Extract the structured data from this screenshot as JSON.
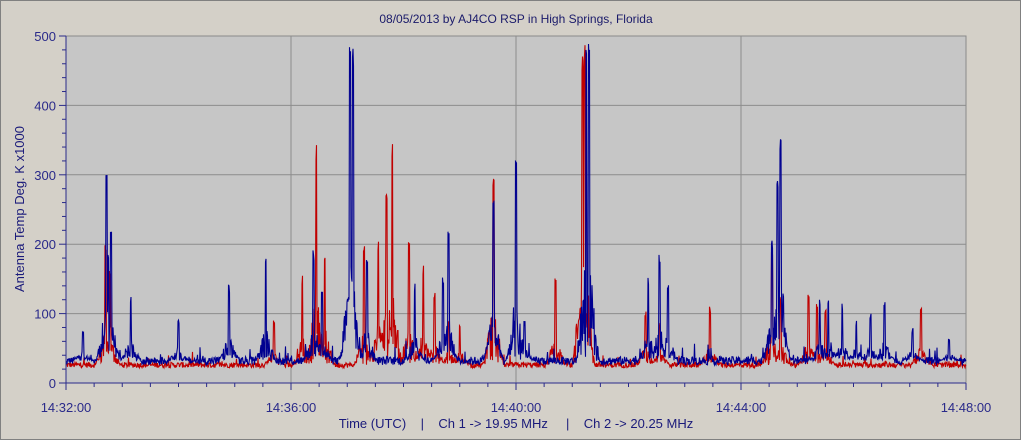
{
  "chart_data": {
    "type": "line",
    "title": "08/05/2013  by  AJ4CO RSP  in  High Springs, Florida",
    "xlabel": "Time (UTC)    |    Ch 1 -> 19.95 MHz     |    Ch 2 -> 20.25 MHz",
    "ylabel": "Antenna Temp Deg. K x1000",
    "ylim": [
      0,
      500
    ],
    "xlim": [
      "14:32:00",
      "14:48:00"
    ],
    "y_ticks": [
      "0",
      "100",
      "200",
      "300",
      "400",
      "500"
    ],
    "x_ticks": [
      "14:32:00",
      "14:36:00",
      "14:40:00",
      "14:44:00",
      "14:48:00"
    ],
    "grid": true,
    "series": [
      {
        "name": "Ch 1 -> 19.95 MHz",
        "color": "#000090",
        "baseline": 32,
        "noise": 6,
        "spikes": [
          {
            "t": 0.3,
            "v": 75
          },
          {
            "t": 0.7,
            "v": 85
          },
          {
            "t": 0.72,
            "v": 318
          },
          {
            "t": 0.75,
            "v": 190
          },
          {
            "t": 0.8,
            "v": 225
          },
          {
            "t": 1.15,
            "v": 125
          },
          {
            "t": 2.0,
            "v": 95
          },
          {
            "t": 2.9,
            "v": 145
          },
          {
            "t": 3.55,
            "v": 180
          },
          {
            "t": 4.4,
            "v": 195
          },
          {
            "t": 4.55,
            "v": 140
          },
          {
            "t": 5.05,
            "v": 500
          },
          {
            "t": 5.1,
            "v": 500
          },
          {
            "t": 5.35,
            "v": 190
          },
          {
            "t": 6.2,
            "v": 145
          },
          {
            "t": 6.7,
            "v": 155
          },
          {
            "t": 6.8,
            "v": 220
          },
          {
            "t": 7.6,
            "v": 265
          },
          {
            "t": 7.6,
            "v": 220
          },
          {
            "t": 8.0,
            "v": 328
          },
          {
            "t": 8.15,
            "v": 90
          },
          {
            "t": 9.25,
            "v": 500
          },
          {
            "t": 9.3,
            "v": 500
          },
          {
            "t": 10.35,
            "v": 155
          },
          {
            "t": 10.55,
            "v": 185
          },
          {
            "t": 10.7,
            "v": 150
          },
          {
            "t": 12.55,
            "v": 210
          },
          {
            "t": 12.65,
            "v": 312
          },
          {
            "t": 12.7,
            "v": 352
          },
          {
            "t": 12.75,
            "v": 135
          },
          {
            "t": 13.4,
            "v": 125
          },
          {
            "t": 13.55,
            "v": 125
          },
          {
            "t": 13.8,
            "v": 115
          },
          {
            "t": 14.05,
            "v": 90
          },
          {
            "t": 14.3,
            "v": 100
          },
          {
            "t": 14.55,
            "v": 122
          },
          {
            "t": 15.05,
            "v": 80
          },
          {
            "t": 15.7,
            "v": 65
          }
        ]
      },
      {
        "name": "Ch 2 -> 20.25 MHz",
        "color": "#c00000",
        "baseline": 26,
        "noise": 4,
        "spikes": [
          {
            "t": 0.7,
            "v": 205
          },
          {
            "t": 0.78,
            "v": 165
          },
          {
            "t": 3.7,
            "v": 95
          },
          {
            "t": 4.2,
            "v": 155
          },
          {
            "t": 4.45,
            "v": 355
          },
          {
            "t": 4.6,
            "v": 190
          },
          {
            "t": 5.3,
            "v": 205
          },
          {
            "t": 5.55,
            "v": 210
          },
          {
            "t": 5.7,
            "v": 295
          },
          {
            "t": 5.8,
            "v": 358
          },
          {
            "t": 6.1,
            "v": 210
          },
          {
            "t": 6.35,
            "v": 170
          },
          {
            "t": 6.55,
            "v": 135
          },
          {
            "t": 6.8,
            "v": 90
          },
          {
            "t": 7.0,
            "v": 85
          },
          {
            "t": 7.6,
            "v": 300
          },
          {
            "t": 8.7,
            "v": 155
          },
          {
            "t": 9.18,
            "v": 500
          },
          {
            "t": 9.22,
            "v": 500
          },
          {
            "t": 10.3,
            "v": 105
          },
          {
            "t": 10.55,
            "v": 90
          },
          {
            "t": 11.45,
            "v": 110
          },
          {
            "t": 12.55,
            "v": 195
          },
          {
            "t": 12.7,
            "v": 125
          },
          {
            "t": 13.2,
            "v": 135
          },
          {
            "t": 13.35,
            "v": 115
          },
          {
            "t": 13.5,
            "v": 105
          },
          {
            "t": 15.2,
            "v": 110
          }
        ]
      }
    ]
  }
}
